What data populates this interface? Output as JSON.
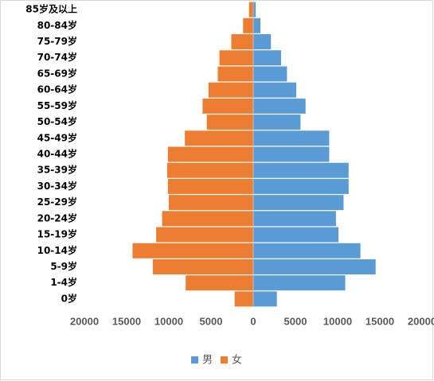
{
  "chart_data": {
    "type": "bar",
    "horizontal": true,
    "stacked": true,
    "categories": [
      "0岁",
      "1-4岁",
      "5-9岁",
      "10-14岁",
      "15-19岁",
      "20-24岁",
      "25-29岁",
      "30-34岁",
      "35-39岁",
      "40-44岁",
      "45-49岁",
      "50-54岁",
      "55-59岁",
      "60-64岁",
      "65-69岁",
      "70-74岁",
      "75-79岁",
      "80-84岁",
      "85岁及以上"
    ],
    "series": [
      {
        "name": "男",
        "color": "#5b9bd5",
        "values": [
          2800,
          10900,
          14500,
          12700,
          10100,
          9800,
          10700,
          11300,
          11300,
          9000,
          9000,
          5600,
          6200,
          5100,
          4000,
          3300,
          2100,
          850,
          300
        ]
      },
      {
        "name": "女",
        "color": "#ed7d31",
        "values": [
          -2200,
          -8000,
          -11900,
          -14300,
          -11500,
          -10800,
          -10000,
          -10100,
          -10200,
          -10100,
          -8100,
          -5500,
          -6000,
          -5300,
          -4200,
          -4000,
          -2600,
          -1200,
          -500
        ]
      }
    ],
    "xlim": [
      -20000,
      20000
    ],
    "xticks": [
      {
        "value": -20000,
        "label": "20000"
      },
      {
        "value": -15000,
        "label": "15000"
      },
      {
        "value": -10000,
        "label": "10000"
      },
      {
        "value": -5000,
        "label": "5000"
      },
      0,
      5000,
      10000,
      15000,
      20000
    ],
    "legend": "bottom",
    "grid": false
  }
}
